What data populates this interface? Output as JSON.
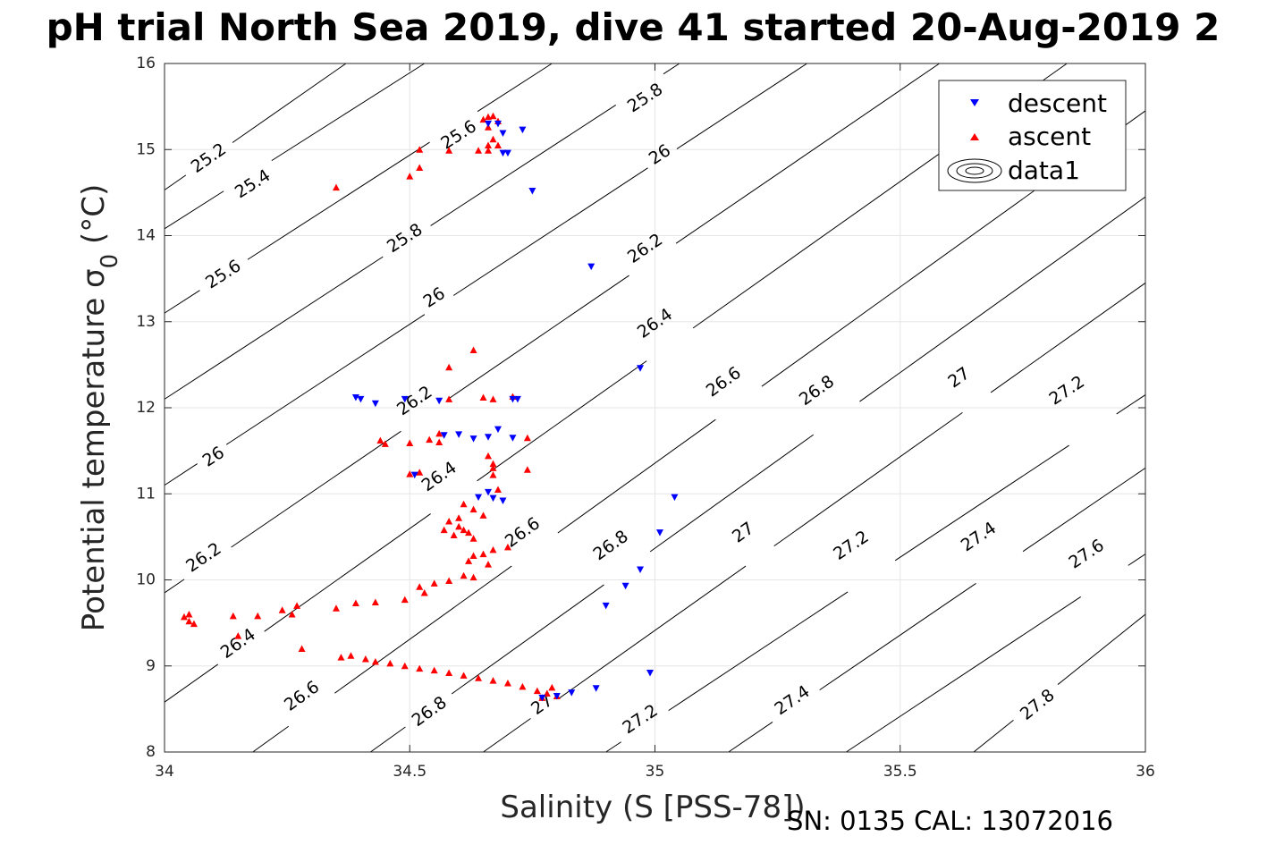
{
  "chart_data": {
    "type": "scatter",
    "title": "pH trial North Sea 2019, dive 41 started 20-Aug-2019 2",
    "xlabel": "Salinity (S [PSS-78])",
    "ylabel": "Potential temperature σ₀ (°C)",
    "xlim": [
      34,
      36
    ],
    "ylim": [
      8,
      16
    ],
    "xticks": [
      34,
      34.5,
      35,
      35.5,
      36
    ],
    "xtick_labels": [
      "34",
      "34.5",
      "35",
      "35.5",
      "36"
    ],
    "yticks": [
      8,
      9,
      10,
      11,
      12,
      13,
      14,
      15,
      16
    ],
    "ytick_labels": [
      "8",
      "9",
      "10",
      "11",
      "12",
      "13",
      "14",
      "15",
      "16"
    ],
    "grid": true,
    "legend_position": "top-right",
    "series": [
      {
        "name": "descent",
        "marker": "triangle-down",
        "color": "#0000ff",
        "points": [
          [
            34.66,
            15.3
          ],
          [
            34.68,
            15.3
          ],
          [
            34.69,
            15.19
          ],
          [
            34.73,
            15.23
          ],
          [
            34.69,
            14.96
          ],
          [
            34.7,
            14.96
          ],
          [
            34.75,
            14.52
          ],
          [
            34.87,
            13.64
          ],
          [
            34.97,
            12.46
          ],
          [
            34.39,
            12.12
          ],
          [
            34.4,
            12.1
          ],
          [
            34.43,
            12.05
          ],
          [
            34.49,
            12.1
          ],
          [
            34.56,
            12.08
          ],
          [
            34.71,
            12.1
          ],
          [
            34.72,
            12.1
          ],
          [
            34.68,
            11.75
          ],
          [
            34.71,
            11.65
          ],
          [
            34.66,
            11.66
          ],
          [
            34.63,
            11.64
          ],
          [
            34.6,
            11.69
          ],
          [
            34.57,
            11.68
          ],
          [
            34.51,
            11.22
          ],
          [
            34.64,
            10.96
          ],
          [
            34.66,
            11.02
          ],
          [
            34.67,
            10.95
          ],
          [
            34.69,
            10.92
          ],
          [
            35.04,
            10.96
          ],
          [
            35.01,
            10.55
          ],
          [
            34.97,
            10.12
          ],
          [
            34.94,
            9.93
          ],
          [
            34.9,
            9.7
          ],
          [
            34.99,
            8.92
          ],
          [
            34.88,
            8.74
          ],
          [
            34.83,
            8.69
          ],
          [
            34.8,
            8.65
          ],
          [
            34.77,
            8.63
          ]
        ]
      },
      {
        "name": "ascent",
        "marker": "triangle-up",
        "color": "#ff0000",
        "points": [
          [
            34.65,
            15.35
          ],
          [
            34.66,
            15.38
          ],
          [
            34.67,
            15.39
          ],
          [
            34.68,
            15.33
          ],
          [
            34.66,
            15.26
          ],
          [
            34.67,
            15.12
          ],
          [
            34.68,
            15.05
          ],
          [
            34.66,
            15.05
          ],
          [
            34.52,
            15.0
          ],
          [
            34.58,
            14.99
          ],
          [
            34.64,
            14.99
          ],
          [
            34.66,
            14.99
          ],
          [
            34.52,
            14.79
          ],
          [
            34.5,
            14.69
          ],
          [
            34.35,
            14.56
          ],
          [
            34.63,
            12.67
          ],
          [
            34.58,
            12.47
          ],
          [
            34.65,
            12.12
          ],
          [
            34.71,
            12.13
          ],
          [
            34.58,
            12.1
          ],
          [
            34.67,
            12.1
          ],
          [
            34.56,
            11.7
          ],
          [
            34.54,
            11.63
          ],
          [
            34.44,
            11.62
          ],
          [
            34.45,
            11.58
          ],
          [
            34.5,
            11.59
          ],
          [
            34.56,
            11.6
          ],
          [
            34.74,
            11.65
          ],
          [
            34.66,
            11.44
          ],
          [
            34.67,
            11.35
          ],
          [
            34.67,
            11.3
          ],
          [
            34.74,
            11.28
          ],
          [
            34.5,
            11.23
          ],
          [
            34.52,
            11.25
          ],
          [
            34.67,
            11.22
          ],
          [
            34.68,
            11.05
          ],
          [
            34.61,
            10.88
          ],
          [
            34.63,
            10.82
          ],
          [
            34.65,
            10.75
          ],
          [
            34.6,
            10.72
          ],
          [
            34.58,
            10.68
          ],
          [
            34.6,
            10.62
          ],
          [
            34.61,
            10.58
          ],
          [
            34.57,
            10.58
          ],
          [
            34.59,
            10.52
          ],
          [
            34.62,
            10.55
          ],
          [
            34.63,
            10.48
          ],
          [
            34.7,
            10.38
          ],
          [
            34.67,
            10.35
          ],
          [
            34.65,
            10.3
          ],
          [
            34.63,
            10.28
          ],
          [
            34.62,
            10.22
          ],
          [
            34.66,
            10.18
          ],
          [
            34.61,
            10.05
          ],
          [
            34.63,
            10.03
          ],
          [
            34.58,
            9.99
          ],
          [
            34.55,
            9.96
          ],
          [
            34.52,
            9.92
          ],
          [
            34.53,
            9.85
          ],
          [
            34.49,
            9.77
          ],
          [
            34.43,
            9.74
          ],
          [
            34.39,
            9.73
          ],
          [
            34.35,
            9.67
          ],
          [
            34.04,
            9.57
          ],
          [
            34.05,
            9.52
          ],
          [
            34.06,
            9.49
          ],
          [
            34.05,
            9.6
          ],
          [
            34.14,
            9.58
          ],
          [
            34.19,
            9.58
          ],
          [
            34.24,
            9.65
          ],
          [
            34.27,
            9.7
          ],
          [
            34.26,
            9.6
          ],
          [
            34.15,
            9.35
          ],
          [
            34.28,
            9.2
          ],
          [
            34.36,
            9.1
          ],
          [
            34.38,
            9.12
          ],
          [
            34.41,
            9.08
          ],
          [
            34.43,
            9.05
          ],
          [
            34.46,
            9.03
          ],
          [
            34.49,
            9.0
          ],
          [
            34.52,
            8.97
          ],
          [
            34.55,
            8.95
          ],
          [
            34.58,
            8.92
          ],
          [
            34.61,
            8.89
          ],
          [
            34.64,
            8.86
          ],
          [
            34.67,
            8.83
          ],
          [
            34.7,
            8.8
          ],
          [
            34.73,
            8.76
          ],
          [
            34.76,
            8.71
          ],
          [
            34.78,
            8.68
          ],
          [
            34.8,
            8.65
          ],
          [
            34.77,
            8.63
          ],
          [
            34.79,
            8.75
          ]
        ]
      }
    ],
    "legend": [
      "descent",
      "ascent",
      "data1"
    ],
    "contour_label_values": [
      "25.2",
      "25.4",
      "25.6",
      "25.8",
      "26",
      "26.2",
      "26.4",
      "26.6",
      "26.8",
      "27",
      "27.2",
      "27.4",
      "27.6",
      "27.8"
    ],
    "contours": [
      {
        "level": "25.2",
        "line": [
          [
            34.0,
            14.53
          ],
          [
            34.37,
            16.0
          ]
        ],
        "labels": [
          [
            34.09,
            14.9
          ]
        ]
      },
      {
        "level": "25.4",
        "line": [
          [
            34.0,
            14.08
          ],
          [
            34.53,
            16.0
          ]
        ],
        "labels": [
          [
            34.18,
            14.6
          ]
        ]
      },
      {
        "level": "25.6",
        "line": [
          [
            34.0,
            13.1
          ],
          [
            34.79,
            16.0
          ]
        ],
        "labels": [
          [
            34.12,
            13.55
          ],
          [
            34.6,
            15.17
          ]
        ]
      },
      {
        "level": "25.8",
        "line": [
          [
            34.0,
            12.1
          ],
          [
            35.05,
            16.0
          ]
        ],
        "labels": [
          [
            34.49,
            13.97
          ],
          [
            34.98,
            15.6
          ]
        ]
      },
      {
        "level": "26",
        "line": [
          [
            34.0,
            11.1
          ],
          [
            35.31,
            16.0
          ]
        ],
        "labels": [
          [
            34.1,
            11.43
          ],
          [
            34.55,
            13.28
          ],
          [
            35.01,
            14.94
          ]
        ]
      },
      {
        "level": "26.2",
        "line": [
          [
            34.0,
            9.85
          ],
          [
            35.58,
            16.0
          ]
        ],
        "labels": [
          [
            34.08,
            10.26
          ],
          [
            34.51,
            12.08
          ],
          [
            34.98,
            13.85
          ]
        ]
      },
      {
        "level": "26.4",
        "line": [
          [
            34.0,
            8.58
          ],
          [
            35.84,
            16.0
          ]
        ],
        "labels": [
          [
            34.15,
            9.26
          ],
          [
            34.56,
            11.2
          ],
          [
            35.0,
            12.98
          ]
        ]
      },
      {
        "level": "26.6",
        "line": [
          [
            34.18,
            8.0
          ],
          [
            36.0,
            15.45
          ]
        ],
        "labels": [
          [
            34.28,
            8.65
          ],
          [
            34.73,
            10.55
          ],
          [
            35.14,
            12.3
          ]
        ]
      },
      {
        "level": "26.8",
        "line": [
          [
            34.42,
            8.0
          ],
          [
            36.0,
            14.45
          ]
        ],
        "labels": [
          [
            34.54,
            8.47
          ],
          [
            34.91,
            10.4
          ],
          [
            35.33,
            12.2
          ]
        ]
      },
      {
        "level": "27",
        "line": [
          [
            34.65,
            8.0
          ],
          [
            36.0,
            13.45
          ]
        ],
        "labels": [
          [
            34.77,
            8.55
          ],
          [
            35.18,
            10.55
          ],
          [
            35.62,
            12.35
          ]
        ]
      },
      {
        "level": "27.2",
        "line": [
          [
            34.9,
            8.0
          ],
          [
            36.0,
            12.15
          ]
        ],
        "labels": [
          [
            34.97,
            8.38
          ],
          [
            35.4,
            10.4
          ],
          [
            35.84,
            12.2
          ]
        ]
      },
      {
        "level": "27.4",
        "line": [
          [
            35.15,
            8.0
          ],
          [
            36.0,
            11.3
          ]
        ],
        "labels": [
          [
            35.28,
            8.6
          ],
          [
            35.66,
            10.5
          ]
        ]
      },
      {
        "level": "27.6",
        "line": [
          [
            35.39,
            8.0
          ],
          [
            36.0,
            10.3
          ]
        ],
        "labels": [
          [
            35.88,
            10.3
          ]
        ]
      },
      {
        "level": "27.8",
        "line": [
          [
            35.65,
            8.0
          ],
          [
            36.0,
            9.6
          ]
        ],
        "labels": [
          [
            35.78,
            8.55
          ]
        ]
      }
    ],
    "footer": "SN: 0135  CAL: 13072016"
  }
}
